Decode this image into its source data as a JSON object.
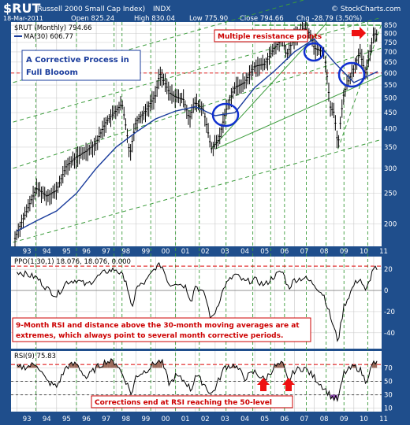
{
  "header": {
    "symbol": "$RUT",
    "name": "(Russell 2000 Small Cap Index)",
    "exchange": "INDX",
    "date": "18-Mar-2011",
    "open": "Open 825.24",
    "high": "High 830.04",
    "low": "Low 775.90",
    "close": "Close 794.66",
    "change": "Chg -28.79 (3.50%)",
    "copyright": "© StockCharts.com"
  },
  "legend": {
    "price": "$RUT (Monthly) 794.66",
    "ma": "MA(30) 606.77",
    "ppo": "PPO(1,30,1) 18.076, 18.076, 0.000",
    "rsi": "RSI(9) 75.83"
  },
  "annotations": {
    "resistance": "Multiple resistance points",
    "corrective_line1": "A Corrective Process in",
    "corrective_line2": "Full Blooom",
    "extremes_line1": "9-Month RSI and distance above the 30-month moving averages are at",
    "extremes_line2": "extremes, which always point to several month corrective periods.",
    "corrections": "Corrections end at RSI reaching the 50-level"
  },
  "colors": {
    "background": "#1f4e8c",
    "panel": "#ffffff",
    "grid": "#c8c8c8",
    "price": "#000000",
    "ma": "#1a3c9c",
    "trend": "#3c9c3c",
    "redline": "#dd0000",
    "circle": "#1030d0",
    "arrow": "#ee1111",
    "rsi_fill": "#9b6a5a"
  },
  "chart_data": [
    {
      "type": "candlestick",
      "title": "$RUT (Russell 2000 Small Cap Index) INDX",
      "x_ticks": [
        "93",
        "94",
        "95",
        "96",
        "97",
        "98",
        "99",
        "00",
        "01",
        "02",
        "03",
        "04",
        "05",
        "06",
        "07",
        "08",
        "09",
        "10",
        "11"
      ],
      "y_ticks": [
        200,
        250,
        300,
        350,
        400,
        450,
        500,
        550,
        600,
        650,
        700,
        750,
        800,
        850
      ],
      "y_scale": "log",
      "series": [
        {
          "name": "$RUT (Monthly)",
          "x": [
            1992.9,
            1993.5,
            1994.0,
            1994.5,
            1995.0,
            1995.5,
            1996.0,
            1996.5,
            1997.0,
            1997.5,
            1998.0,
            1998.3,
            1998.7,
            1999.0,
            1999.5,
            2000.0,
            2000.2,
            2000.7,
            2001.0,
            2001.4,
            2001.7,
            2002.0,
            2002.4,
            2002.8,
            2003.2,
            2003.6,
            2004.0,
            2004.5,
            2005.0,
            2005.5,
            2006.0,
            2006.4,
            2006.6,
            2007.0,
            2007.5,
            2007.8,
            2008.0,
            2008.5,
            2008.8,
            2009.0,
            2009.2,
            2009.5,
            2010.0,
            2010.3,
            2010.6,
            2011.0,
            2011.2
          ],
          "values": [
            180,
            220,
            260,
            245,
            255,
            305,
            325,
            340,
            360,
            420,
            455,
            480,
            330,
            420,
            455,
            510,
            600,
            520,
            505,
            495,
            430,
            485,
            460,
            345,
            370,
            470,
            540,
            560,
            630,
            640,
            720,
            770,
            680,
            780,
            830,
            800,
            720,
            700,
            470,
            450,
            350,
            520,
            620,
            700,
            590,
            800,
            795
          ]
        },
        {
          "name": "MA(30)",
          "x": [
            1993.0,
            1994.0,
            1995.0,
            1996.0,
            1997.0,
            1998.0,
            1999.0,
            2000.0,
            2001.0,
            2002.0,
            2003.0,
            2004.0,
            2005.0,
            2006.0,
            2007.0,
            2008.0,
            2009.0,
            2010.0,
            2011.2
          ],
          "values": [
            190,
            205,
            220,
            250,
            300,
            350,
            390,
            430,
            455,
            470,
            440,
            450,
            540,
            610,
            700,
            770,
            650,
            560,
            607
          ]
        }
      ],
      "horizontal_line": 600
    },
    {
      "type": "line",
      "title": "PPO(1,30,1)",
      "y_ticks": [
        20,
        0,
        -20,
        -40
      ],
      "series": [
        {
          "name": "PPO(1,30,1)",
          "x": [
            1993.0,
            1993.5,
            1994.0,
            1994.5,
            1995.0,
            1995.5,
            1996.0,
            1996.5,
            1997.0,
            1997.5,
            1998.0,
            1998.5,
            1998.8,
            1999.0,
            1999.5,
            2000.0,
            2000.3,
            2000.7,
            2001.0,
            2001.5,
            2001.8,
            2002.0,
            2002.5,
            2002.8,
            2003.0,
            2003.5,
            2004.0,
            2004.5,
            2005.0,
            2005.5,
            2006.0,
            2006.4,
            2006.7,
            2007.0,
            2007.5,
            2008.0,
            2008.5,
            2008.9,
            2009.2,
            2009.5,
            2010.0,
            2010.3,
            2010.6,
            2011.0,
            2011.2
          ],
          "values": [
            18,
            15,
            12,
            2,
            -5,
            8,
            10,
            5,
            12,
            18,
            20,
            10,
            -20,
            2,
            8,
            22,
            24,
            5,
            8,
            4,
            -10,
            5,
            -5,
            -28,
            -20,
            5,
            15,
            8,
            10,
            5,
            14,
            18,
            2,
            10,
            12,
            6,
            -5,
            -30,
            -48,
            -15,
            5,
            12,
            -2,
            22,
            18
          ]
        }
      ],
      "horizontal_line": 23
    },
    {
      "type": "line",
      "title": "RSI(9)",
      "y_ticks": [
        70,
        50,
        30,
        10
      ],
      "series": [
        {
          "name": "RSI(9)",
          "x": [
            1993.0,
            1993.5,
            1994.0,
            1994.5,
            1995.0,
            1995.5,
            1996.0,
            1996.5,
            1997.0,
            1997.5,
            1998.0,
            1998.5,
            1998.8,
            1999.0,
            1999.5,
            2000.0,
            2000.3,
            2000.7,
            2001.0,
            2001.5,
            2001.8,
            2002.0,
            2002.5,
            2002.8,
            2003.0,
            2003.5,
            2004.0,
            2004.5,
            2005.0,
            2005.5,
            2006.0,
            2006.4,
            2006.7,
            2007.0,
            2007.5,
            2008.0,
            2008.5,
            2008.9,
            2009.2,
            2009.5,
            2010.0,
            2010.3,
            2010.6,
            2011.0,
            2011.2
          ],
          "values": [
            70,
            72,
            76,
            50,
            42,
            72,
            76,
            55,
            70,
            80,
            78,
            50,
            30,
            58,
            66,
            78,
            80,
            45,
            58,
            50,
            36,
            60,
            44,
            30,
            40,
            72,
            74,
            55,
            64,
            52,
            72,
            76,
            48,
            66,
            70,
            56,
            40,
            26,
            22,
            62,
            72,
            68,
            50,
            78,
            76
          ]
        }
      ],
      "horizontal_lines": [
        75,
        50,
        30
      ]
    }
  ]
}
